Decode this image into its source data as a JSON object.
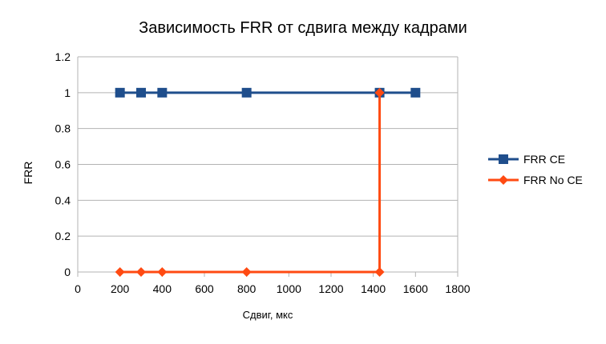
{
  "chart_data": {
    "type": "line",
    "title": "Зависимость FRR от сдвига между кадрами",
    "xlabel": "Сдвиг, мкс",
    "ylabel": "FRR",
    "xlim": [
      0,
      1800
    ],
    "ylim": [
      0,
      1.2
    ],
    "x_ticks": [
      0,
      200,
      400,
      600,
      800,
      1000,
      1200,
      1400,
      1600,
      1800
    ],
    "y_ticks": [
      0,
      0.2,
      0.4,
      0.6,
      0.8,
      1,
      1.2
    ],
    "grid": "horizontal",
    "legend_position": "right",
    "series": [
      {
        "name": "FRR CE",
        "color": "#1f4e8c",
        "marker": "square",
        "x": [
          200,
          300,
          400,
          800,
          1430,
          1600
        ],
        "y": [
          1,
          1,
          1,
          1,
          1,
          1
        ]
      },
      {
        "name": "FRR No CE",
        "color": "#ff4a12",
        "marker": "diamond",
        "x": [
          200,
          300,
          400,
          800,
          1430,
          1430
        ],
        "y": [
          0,
          0,
          0,
          0,
          0,
          1
        ]
      }
    ]
  }
}
